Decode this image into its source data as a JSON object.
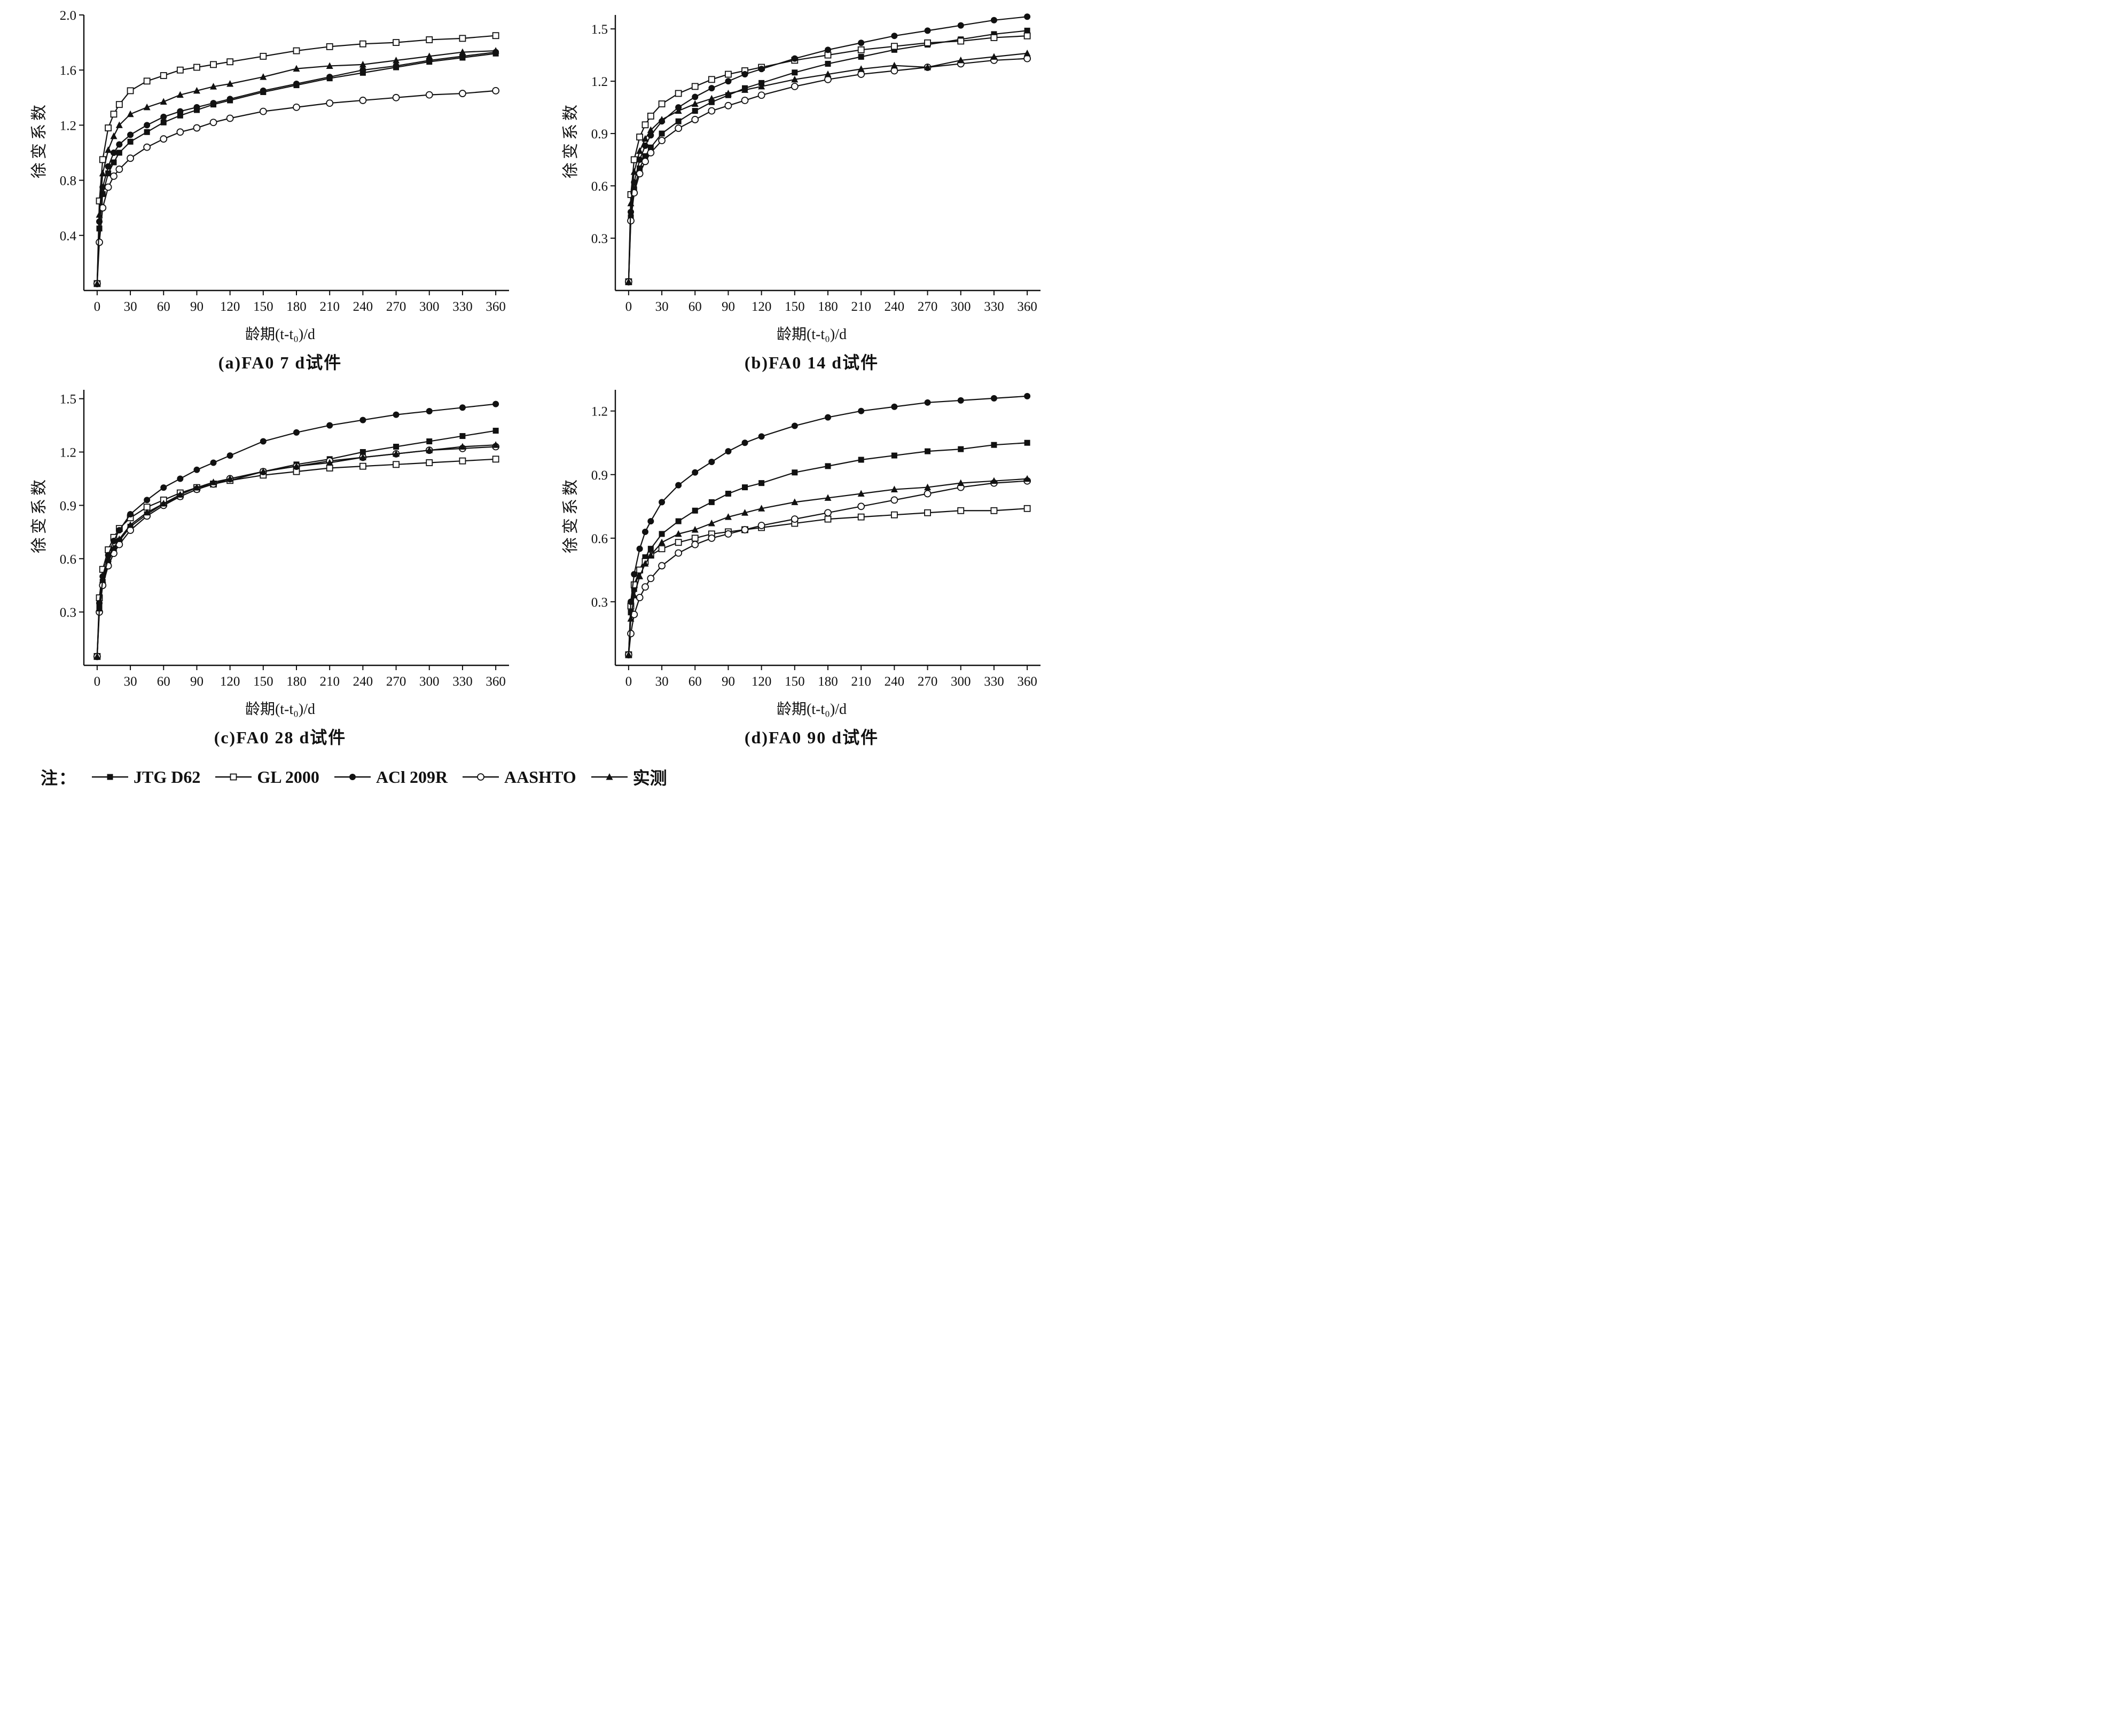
{
  "page": {
    "background": "#ffffff",
    "ink": "#111111"
  },
  "legend": {
    "note": "注：",
    "items": [
      {
        "label": "JTG D62",
        "marker": "filled-square"
      },
      {
        "label": "GL 2000",
        "marker": "open-square"
      },
      {
        "label": "ACl 209R",
        "marker": "filled-circle"
      },
      {
        "label": "AASHTO",
        "marker": "open-circle"
      },
      {
        "label": "实测",
        "marker": "filled-triangle"
      }
    ]
  },
  "chart_data": [
    {
      "type": "line",
      "title": "(a)FA0 7 d试件",
      "xlabel": "龄期(t-t₀)/d",
      "ylabel": "徐变系数",
      "xlim": [
        -12,
        372
      ],
      "ylim": [
        0,
        2.0
      ],
      "xticks": [
        0,
        30,
        60,
        90,
        120,
        150,
        180,
        210,
        240,
        270,
        300,
        330,
        360
      ],
      "yticks": [
        "0.4",
        "0.8",
        "1.2",
        "1.6",
        "2.0"
      ],
      "x": [
        0,
        2,
        5,
        10,
        15,
        20,
        30,
        45,
        60,
        75,
        90,
        105,
        120,
        150,
        180,
        210,
        240,
        270,
        300,
        330,
        360
      ],
      "series": [
        {
          "name": "JTG D62",
          "marker": "filled-square",
          "values": [
            0.05,
            0.45,
            0.7,
            0.85,
            0.93,
            1.0,
            1.08,
            1.15,
            1.22,
            1.27,
            1.31,
            1.35,
            1.38,
            1.44,
            1.49,
            1.54,
            1.58,
            1.62,
            1.66,
            1.69,
            1.72
          ]
        },
        {
          "name": "GL 2000",
          "marker": "open-square",
          "values": [
            0.05,
            0.65,
            0.95,
            1.18,
            1.28,
            1.35,
            1.45,
            1.52,
            1.56,
            1.6,
            1.62,
            1.64,
            1.66,
            1.7,
            1.74,
            1.77,
            1.79,
            1.8,
            1.82,
            1.83,
            1.85
          ]
        },
        {
          "name": "ACl 209R",
          "marker": "filled-circle",
          "values": [
            0.05,
            0.5,
            0.75,
            0.9,
            1.0,
            1.06,
            1.13,
            1.2,
            1.26,
            1.3,
            1.33,
            1.36,
            1.39,
            1.45,
            1.5,
            1.55,
            1.6,
            1.63,
            1.67,
            1.7,
            1.73
          ]
        },
        {
          "name": "AASHTO",
          "marker": "open-circle",
          "values": [
            0.05,
            0.35,
            0.6,
            0.75,
            0.83,
            0.88,
            0.96,
            1.04,
            1.1,
            1.15,
            1.18,
            1.22,
            1.25,
            1.3,
            1.33,
            1.36,
            1.38,
            1.4,
            1.42,
            1.43,
            1.45
          ]
        },
        {
          "name": "实测",
          "marker": "filled-triangle",
          "values": [
            0.05,
            0.55,
            0.85,
            1.02,
            1.12,
            1.2,
            1.28,
            1.33,
            1.37,
            1.42,
            1.45,
            1.48,
            1.5,
            1.55,
            1.61,
            1.63,
            1.64,
            1.67,
            1.7,
            1.73,
            1.74
          ]
        }
      ]
    },
    {
      "type": "line",
      "title": "(b)FA0 14 d试件",
      "xlabel": "龄期(t-t₀)/d",
      "ylabel": "徐变系数",
      "xlim": [
        -12,
        372
      ],
      "ylim": [
        0,
        1.58
      ],
      "xticks": [
        0,
        30,
        60,
        90,
        120,
        150,
        180,
        210,
        240,
        270,
        300,
        330,
        360
      ],
      "yticks": [
        "0.3",
        "0.6",
        "0.9",
        "1.2",
        "1.5"
      ],
      "x": [
        0,
        2,
        5,
        10,
        15,
        20,
        30,
        45,
        60,
        75,
        90,
        105,
        120,
        150,
        180,
        210,
        240,
        270,
        300,
        330,
        360
      ],
      "series": [
        {
          "name": "JTG D62",
          "marker": "filled-square",
          "values": [
            0.05,
            0.42,
            0.58,
            0.7,
            0.77,
            0.82,
            0.9,
            0.97,
            1.03,
            1.08,
            1.12,
            1.16,
            1.19,
            1.25,
            1.3,
            1.34,
            1.38,
            1.41,
            1.44,
            1.47,
            1.49
          ]
        },
        {
          "name": "GL 2000",
          "marker": "open-square",
          "values": [
            0.05,
            0.55,
            0.75,
            0.88,
            0.95,
            1.0,
            1.07,
            1.13,
            1.17,
            1.21,
            1.24,
            1.26,
            1.28,
            1.32,
            1.35,
            1.38,
            1.4,
            1.42,
            1.43,
            1.45,
            1.46
          ]
        },
        {
          "name": "ACl 209R",
          "marker": "filled-circle",
          "values": [
            0.05,
            0.45,
            0.62,
            0.75,
            0.83,
            0.89,
            0.97,
            1.05,
            1.11,
            1.16,
            1.2,
            1.24,
            1.27,
            1.33,
            1.38,
            1.42,
            1.46,
            1.49,
            1.52,
            1.55,
            1.57
          ]
        },
        {
          "name": "AASHTO",
          "marker": "open-circle",
          "values": [
            0.05,
            0.4,
            0.56,
            0.67,
            0.74,
            0.79,
            0.86,
            0.93,
            0.98,
            1.03,
            1.06,
            1.09,
            1.12,
            1.17,
            1.21,
            1.24,
            1.26,
            1.28,
            1.3,
            1.32,
            1.33
          ]
        },
        {
          "name": "实测",
          "marker": "filled-triangle",
          "values": [
            0.05,
            0.5,
            0.68,
            0.8,
            0.87,
            0.92,
            0.98,
            1.03,
            1.07,
            1.1,
            1.13,
            1.15,
            1.17,
            1.21,
            1.24,
            1.27,
            1.29,
            1.28,
            1.32,
            1.34,
            1.36
          ]
        }
      ]
    },
    {
      "type": "line",
      "title": "(c)FA0 28 d试件",
      "xlabel": "龄期(t-t₀)/d",
      "ylabel": "徐变系数",
      "xlim": [
        -12,
        372
      ],
      "ylim": [
        0,
        1.55
      ],
      "xticks": [
        0,
        30,
        60,
        90,
        120,
        150,
        180,
        210,
        240,
        270,
        300,
        330,
        360
      ],
      "yticks": [
        "0.3",
        "0.6",
        "0.9",
        "1.2",
        "1.5"
      ],
      "x": [
        0,
        2,
        5,
        10,
        15,
        20,
        30,
        45,
        60,
        75,
        90,
        105,
        120,
        150,
        180,
        210,
        240,
        270,
        300,
        330,
        360
      ],
      "series": [
        {
          "name": "JTG D62",
          "marker": "filled-square",
          "values": [
            0.05,
            0.33,
            0.47,
            0.58,
            0.65,
            0.7,
            0.78,
            0.85,
            0.91,
            0.95,
            0.99,
            1.02,
            1.04,
            1.09,
            1.13,
            1.16,
            1.2,
            1.23,
            1.26,
            1.29,
            1.32
          ]
        },
        {
          "name": "GL 2000",
          "marker": "open-square",
          "values": [
            0.05,
            0.38,
            0.54,
            0.65,
            0.72,
            0.77,
            0.83,
            0.89,
            0.93,
            0.97,
            1.0,
            1.02,
            1.04,
            1.07,
            1.09,
            1.11,
            1.12,
            1.13,
            1.14,
            1.15,
            1.16
          ]
        },
        {
          "name": "ACl 209R",
          "marker": "filled-circle",
          "values": [
            0.05,
            0.35,
            0.5,
            0.62,
            0.7,
            0.76,
            0.85,
            0.93,
            1.0,
            1.05,
            1.1,
            1.14,
            1.18,
            1.26,
            1.31,
            1.35,
            1.38,
            1.41,
            1.43,
            1.45,
            1.47
          ]
        },
        {
          "name": "AASHTO",
          "marker": "open-circle",
          "values": [
            0.05,
            0.3,
            0.45,
            0.56,
            0.63,
            0.68,
            0.76,
            0.84,
            0.9,
            0.95,
            0.99,
            1.02,
            1.05,
            1.09,
            1.12,
            1.15,
            1.17,
            1.19,
            1.21,
            1.22,
            1.23
          ]
        },
        {
          "name": "实测",
          "marker": "filled-triangle",
          "values": [
            0.05,
            0.32,
            0.48,
            0.6,
            0.66,
            0.71,
            0.79,
            0.86,
            0.91,
            0.96,
            1.0,
            1.03,
            1.05,
            1.09,
            1.12,
            1.14,
            1.17,
            1.19,
            1.21,
            1.23,
            1.24
          ]
        }
      ]
    },
    {
      "type": "line",
      "title": "(d)FA0 90 d试件",
      "xlabel": "龄期(t-t₀)/d",
      "ylabel": "徐变系数",
      "xlim": [
        -12,
        372
      ],
      "ylim": [
        0,
        1.3
      ],
      "xticks": [
        0,
        30,
        60,
        90,
        120,
        150,
        180,
        210,
        240,
        270,
        300,
        330,
        360
      ],
      "yticks": [
        "0.3",
        "0.6",
        "0.9",
        "1.2"
      ],
      "x": [
        0,
        2,
        5,
        10,
        15,
        20,
        30,
        45,
        60,
        75,
        90,
        105,
        120,
        150,
        180,
        210,
        240,
        270,
        300,
        330,
        360
      ],
      "series": [
        {
          "name": "JTG D62",
          "marker": "filled-square",
          "values": [
            0.05,
            0.25,
            0.36,
            0.45,
            0.51,
            0.55,
            0.62,
            0.68,
            0.73,
            0.77,
            0.81,
            0.84,
            0.86,
            0.91,
            0.94,
            0.97,
            0.99,
            1.01,
            1.02,
            1.04,
            1.05
          ]
        },
        {
          "name": "GL 2000",
          "marker": "open-square",
          "values": [
            0.05,
            0.28,
            0.38,
            0.45,
            0.49,
            0.52,
            0.55,
            0.58,
            0.6,
            0.62,
            0.63,
            0.64,
            0.65,
            0.67,
            0.69,
            0.7,
            0.71,
            0.72,
            0.73,
            0.73,
            0.74
          ]
        },
        {
          "name": "ACl 209R",
          "marker": "filled-circle",
          "values": [
            0.05,
            0.3,
            0.43,
            0.55,
            0.63,
            0.68,
            0.77,
            0.85,
            0.91,
            0.96,
            1.01,
            1.05,
            1.08,
            1.13,
            1.17,
            1.2,
            1.22,
            1.24,
            1.25,
            1.26,
            1.27
          ]
        },
        {
          "name": "AASHTO",
          "marker": "open-circle",
          "values": [
            0.05,
            0.15,
            0.24,
            0.32,
            0.37,
            0.41,
            0.47,
            0.53,
            0.57,
            0.6,
            0.62,
            0.64,
            0.66,
            0.69,
            0.72,
            0.75,
            0.78,
            0.81,
            0.84,
            0.86,
            0.87
          ]
        },
        {
          "name": "实测",
          "marker": "filled-triangle",
          "values": [
            0.05,
            0.22,
            0.33,
            0.42,
            0.48,
            0.52,
            0.58,
            0.62,
            0.64,
            0.67,
            0.7,
            0.72,
            0.74,
            0.77,
            0.79,
            0.81,
            0.83,
            0.84,
            0.86,
            0.87,
            0.88
          ]
        }
      ]
    }
  ]
}
